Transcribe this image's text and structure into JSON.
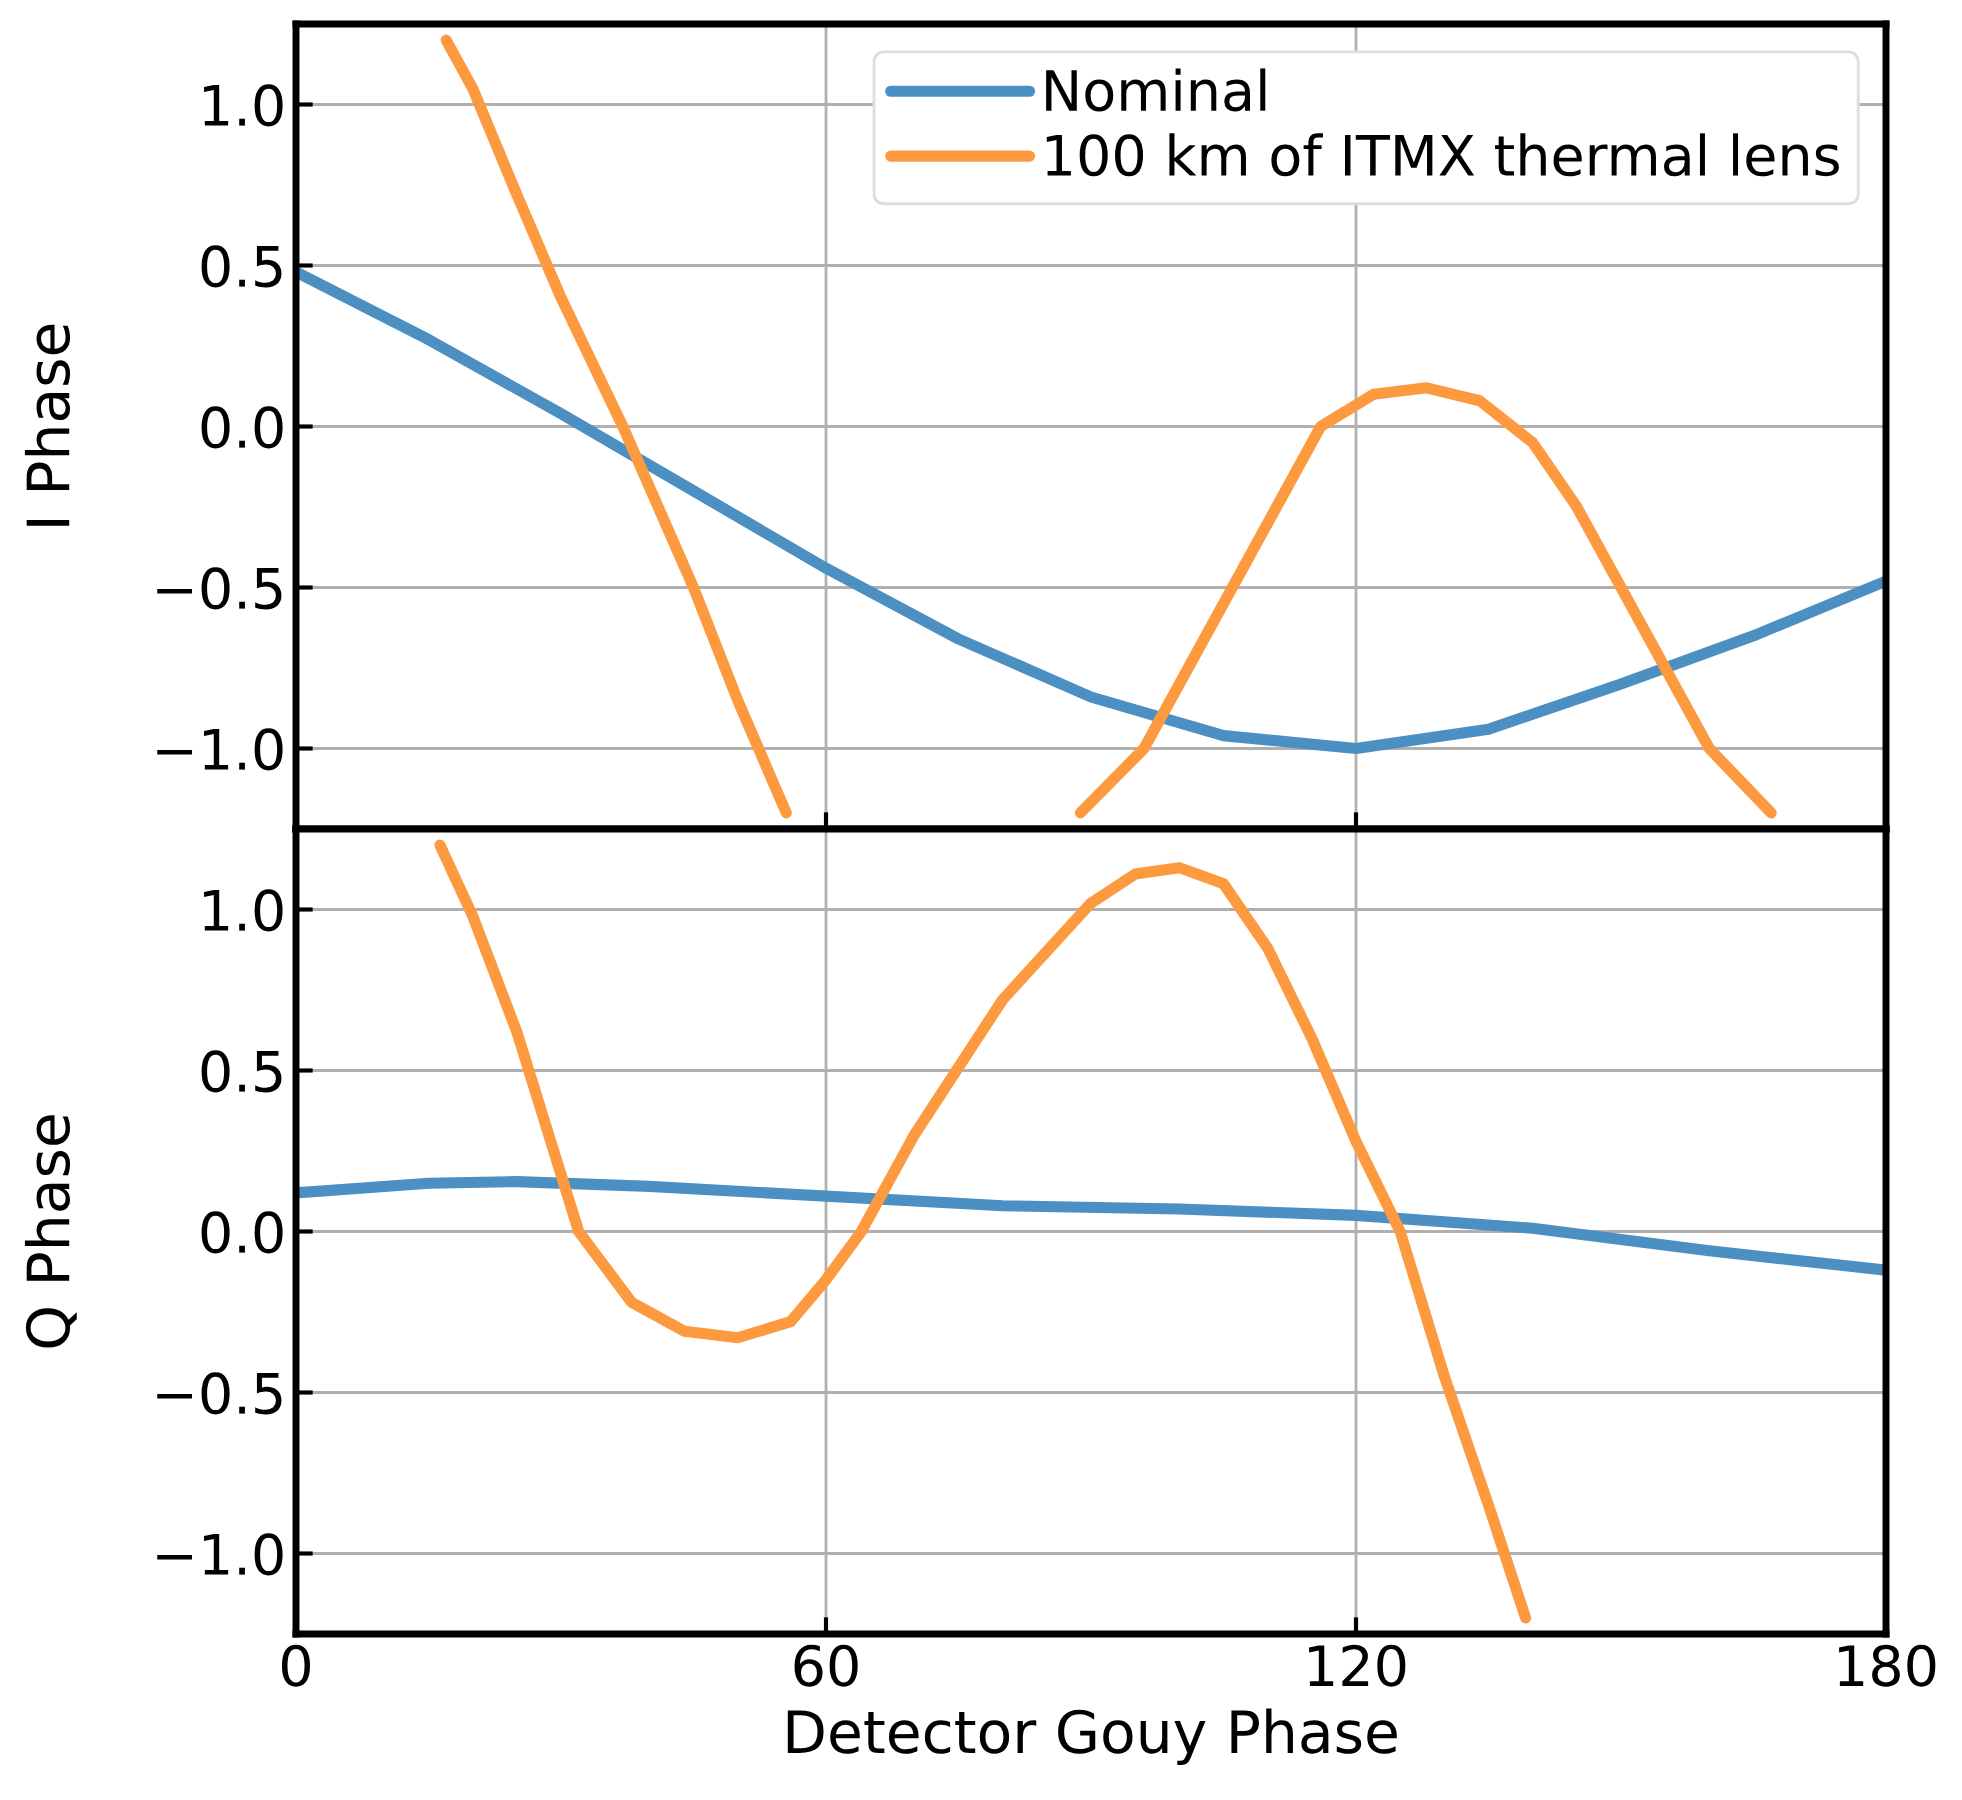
{
  "chart_data": [
    {
      "type": "line",
      "ylabel": "I Phase",
      "xlim": [
        0,
        180
      ],
      "xticks": [
        0,
        60,
        120,
        180
      ],
      "ylim": [
        -1.25,
        1.25
      ],
      "yticks": [
        {
          "value": -1.0,
          "label": "−1.0"
        },
        {
          "value": -0.5,
          "label": "−0.5"
        },
        {
          "value": 0.0,
          "label": "0.0"
        },
        {
          "value": 0.5,
          "label": "0.5"
        },
        {
          "value": 1.0,
          "label": "1.0"
        }
      ],
      "grid": true,
      "legend": "top right",
      "tick_labels": "y",
      "line_style": "solid",
      "series": [
        {
          "name": "Nominal",
          "color": "#4b8fc3",
          "x": [
            0,
            15,
            30,
            45,
            60,
            75,
            90,
            105,
            120,
            135,
            150,
            165,
            180
          ],
          "values": [
            0.48,
            0.27,
            0.04,
            -0.2,
            -0.44,
            -0.66,
            -0.84,
            -0.96,
            -1.0,
            -0.94,
            -0.8,
            -0.65,
            -0.48
          ]
        },
        {
          "name": "100 km of ITMX thermal lens",
          "color": "#fd9a3f",
          "x": [
            17,
            20,
            25,
            30,
            37,
            45,
            50,
            55.5,
            72,
            88.8,
            96,
            101,
            106,
            111,
            116,
            122,
            128,
            134,
            140,
            145,
            150,
            155,
            160,
            167
          ],
          "values": [
            1.2,
            1.05,
            0.72,
            0.4,
            0.0,
            -0.5,
            -0.85,
            -1.2,
            null,
            -1.2,
            -1.0,
            -0.75,
            -0.5,
            -0.25,
            0.0,
            0.1,
            0.12,
            0.08,
            -0.05,
            -0.25,
            -0.5,
            -0.75,
            -1.0,
            -1.2
          ]
        }
      ]
    },
    {
      "type": "line",
      "ylabel": "Q Phase",
      "xlabel": "Detector Gouy Phase",
      "xlim": [
        0,
        180
      ],
      "xticks": [
        0,
        60,
        120,
        180
      ],
      "ylim": [
        -1.25,
        1.25
      ],
      "yticks": [
        {
          "value": -1.0,
          "label": "−1.0"
        },
        {
          "value": -0.5,
          "label": "−0.5"
        },
        {
          "value": 0.0,
          "label": "0.0"
        },
        {
          "value": 0.5,
          "label": "0.5"
        },
        {
          "value": 1.0,
          "label": "1.0"
        }
      ],
      "grid": true,
      "line_style": "solid",
      "series": [
        {
          "color": "#4b8fc3",
          "x": [
            0,
            15,
            25,
            40,
            60,
            80,
            100,
            120,
            140,
            160,
            180
          ],
          "values": [
            0.12,
            0.15,
            0.155,
            0.14,
            0.11,
            0.08,
            0.07,
            0.05,
            0.01,
            -0.06,
            -0.12
          ]
        },
        {
          "color": "#fd9a3f",
          "x": [
            16.3,
            20,
            25,
            32,
            38,
            44,
            50,
            56,
            60,
            64,
            70,
            80,
            90,
            95,
            100,
            105,
            110,
            115,
            120,
            125,
            130,
            135,
            139.2
          ],
          "values": [
            1.2,
            0.98,
            0.62,
            0.0,
            -0.22,
            -0.31,
            -0.33,
            -0.28,
            -0.15,
            0.0,
            0.3,
            0.72,
            1.02,
            1.11,
            1.13,
            1.08,
            0.88,
            0.6,
            0.28,
            0.0,
            -0.45,
            -0.85,
            -1.2
          ]
        }
      ]
    }
  ]
}
